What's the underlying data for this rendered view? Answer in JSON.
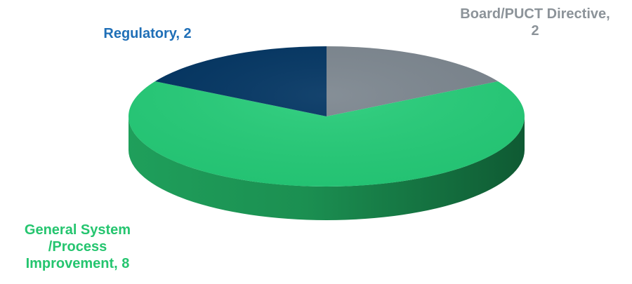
{
  "chart_data": {
    "type": "pie",
    "style": "3d",
    "slices": [
      {
        "label": "Board/PUCT Directive",
        "value": 2,
        "color": "#7b858e",
        "label_color": "#8c9399",
        "label_lines": [
          "Board/PUCT Directive,",
          "2"
        ]
      },
      {
        "label": "General System /Process Improvement",
        "value": 8,
        "color": "#25cc78",
        "label_color": "#25c56f",
        "label_lines": [
          "General System",
          "/Process",
          "Improvement, 8"
        ]
      },
      {
        "label": "Regulatory",
        "value": 2,
        "color": "#003361",
        "label_color": "#1f6fb7",
        "label_lines": [
          "Regulatory, 2"
        ]
      }
    ]
  }
}
